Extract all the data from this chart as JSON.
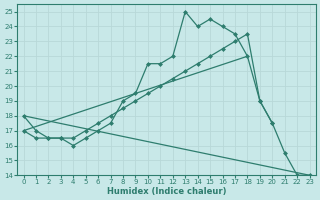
{
  "xlabel": "Humidex (Indice chaleur)",
  "background_color": "#c8e8e8",
  "grid_color": "#d4ecec",
  "line_color": "#2e7d6e",
  "xlim": [
    -0.5,
    23.5
  ],
  "ylim": [
    14,
    25.5
  ],
  "xticks": [
    0,
    1,
    2,
    3,
    4,
    5,
    6,
    7,
    8,
    9,
    10,
    11,
    12,
    13,
    14,
    15,
    16,
    17,
    18,
    19,
    20,
    21,
    22,
    23
  ],
  "yticks": [
    14,
    15,
    16,
    17,
    18,
    19,
    20,
    21,
    22,
    23,
    24,
    25
  ],
  "curve1_x": [
    0,
    1,
    2,
    3,
    4,
    5,
    6,
    7,
    8,
    9,
    10,
    11,
    12,
    13,
    14,
    15,
    16,
    17,
    18,
    19,
    20,
    21,
    22,
    23
  ],
  "curve1_y": [
    18,
    17,
    16.5,
    16.5,
    16,
    16.5,
    17,
    17.5,
    19,
    19.5,
    21.5,
    21.5,
    22,
    25,
    24,
    24.5,
    24,
    23.5,
    22,
    19,
    17.5,
    15.5,
    14,
    14
  ],
  "curve2_x": [
    0,
    1,
    2,
    3,
    4,
    5,
    6,
    7,
    8,
    9,
    10,
    11,
    12,
    13,
    14,
    15,
    16,
    17,
    18,
    19,
    20
  ],
  "curve2_y": [
    17,
    16.5,
    16.5,
    16.5,
    16.5,
    17,
    17.5,
    18,
    18.5,
    19,
    19.5,
    20,
    20.5,
    21,
    21.5,
    22,
    22.5,
    23,
    23.5,
    19,
    17.5
  ],
  "line3_x": [
    0,
    18
  ],
  "line3_y": [
    17,
    22
  ],
  "line4_x": [
    0,
    23
  ],
  "line4_y": [
    18,
    14
  ]
}
